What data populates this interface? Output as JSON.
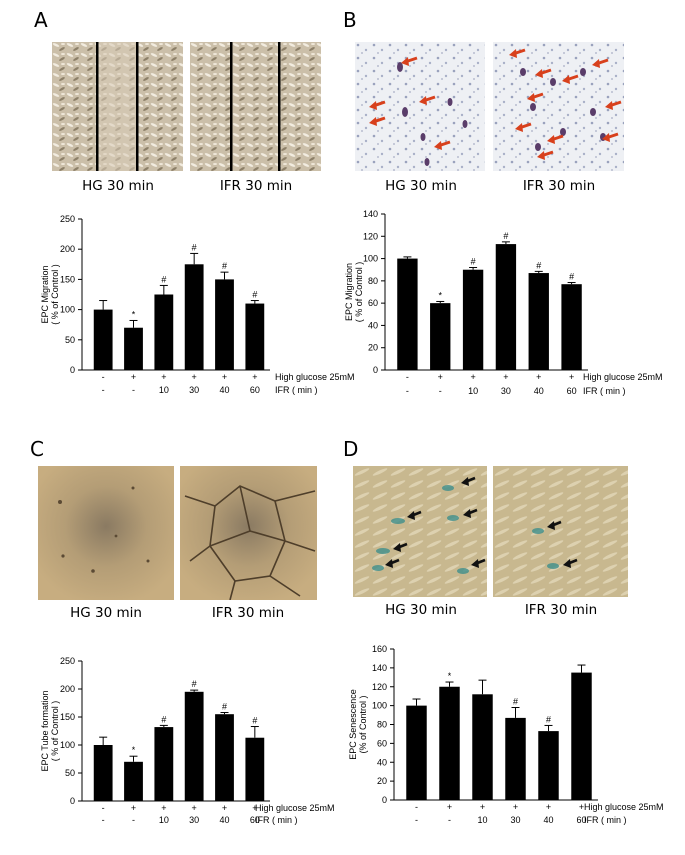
{
  "panels": [
    {
      "letter": "A",
      "captions": [
        "HG 30 min",
        "IFR 30 min"
      ]
    },
    {
      "letter": "B",
      "captions": [
        "HG 30 min",
        "IFR 30 min"
      ]
    },
    {
      "letter": "C",
      "captions": [
        "HG 30 min",
        "IFR 30 min"
      ]
    },
    {
      "letter": "D",
      "captions": [
        "HG 30 min",
        "IFR 30 min"
      ]
    }
  ],
  "colors": {
    "bar": "#000000",
    "arrow_red": "#d8401c",
    "arrow_black": "#111111"
  },
  "chart_data": [
    {
      "type": "bar",
      "panel": "A",
      "ylabel": "EPC Migration",
      "ylabel2": "( % of Control )",
      "ylim": [
        0,
        250
      ],
      "yticks": [
        0,
        50,
        100,
        150,
        200,
        250
      ],
      "values": [
        100,
        70,
        125,
        175,
        150,
        110
      ],
      "errors": [
        15,
        12,
        15,
        18,
        12,
        5
      ],
      "marks": [
        "",
        "*",
        "#",
        "#",
        "#",
        "#"
      ],
      "row1": [
        "-",
        "+",
        "+",
        "+",
        "+",
        "+"
      ],
      "row1_label": "High glucose 25mM",
      "row2": [
        "-",
        "-",
        "10",
        "30",
        "40",
        "60"
      ],
      "row2_label": "IFR ( min )"
    },
    {
      "type": "bar",
      "panel": "B",
      "ylabel": "EPC Migration",
      "ylabel2": "( % of Control )",
      "ylim": [
        0,
        140
      ],
      "yticks": [
        0,
        20,
        40,
        60,
        80,
        100,
        120,
        140
      ],
      "values": [
        100,
        60,
        90,
        113,
        87,
        77
      ],
      "errors": [
        1.5,
        1.5,
        2,
        2,
        1.5,
        1.5
      ],
      "marks": [
        "",
        "*",
        "#",
        "#",
        "#",
        "#"
      ],
      "row1": [
        "-",
        "+",
        "+",
        "+",
        "+",
        "+"
      ],
      "row1_label": "High glucose 25mM",
      "row2": [
        "-",
        "-",
        "10",
        "30",
        "40",
        "60"
      ],
      "row2_label": "IFR ( min )"
    },
    {
      "type": "bar",
      "panel": "C",
      "ylabel": "EPC Tube formation",
      "ylabel2": "( % of Control )",
      "ylim": [
        0,
        250
      ],
      "yticks": [
        0,
        50,
        100,
        150,
        200,
        250
      ],
      "values": [
        100,
        70,
        132,
        195,
        155,
        113
      ],
      "errors": [
        14,
        10,
        3,
        3,
        3,
        20
      ],
      "marks": [
        "",
        "*",
        "#",
        "#",
        "#",
        "#"
      ],
      "row1": [
        "-",
        "+",
        "+",
        "+",
        "+",
        "+"
      ],
      "row1_label": "High glucose 25mM",
      "row2": [
        "-",
        "-",
        "10",
        "30",
        "40",
        "60"
      ],
      "row2_label": "IFR ( min )"
    },
    {
      "type": "bar",
      "panel": "D",
      "ylabel": "EPC Senescence",
      "ylabel2": "(% of Control )",
      "ylim": [
        0,
        160
      ],
      "yticks": [
        0,
        20,
        40,
        60,
        80,
        100,
        120,
        140,
        160
      ],
      "values": [
        100,
        120,
        112,
        87,
        73,
        135
      ],
      "errors": [
        7,
        5,
        15,
        11,
        6,
        8
      ],
      "marks": [
        "",
        "*",
        "",
        "#",
        "#",
        ""
      ],
      "row1": [
        "-",
        "+",
        "+",
        "+",
        "+",
        "+"
      ],
      "row1_label": "High glucose 25mM",
      "row2": [
        "-",
        "-",
        "10",
        "30",
        "40",
        "60"
      ],
      "row2_label": "IFR ( min )"
    }
  ]
}
